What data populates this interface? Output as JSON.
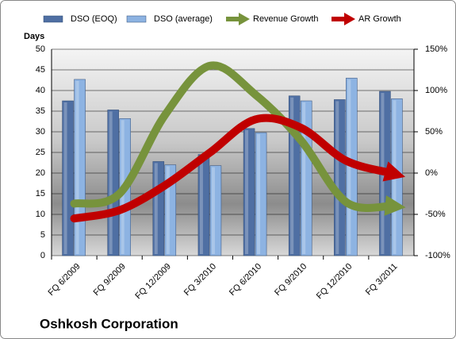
{
  "chart_data": {
    "type": "bar-line",
    "title": "Oshkosh Corporation",
    "y_label": "Days",
    "categories": [
      "FQ 6/2009",
      "FQ 9/2009",
      "FQ 12/2009",
      "FQ 3/2010",
      "FQ 6/2010",
      "FQ 9/2010",
      "FQ 12/2010",
      "FQ 3/2011"
    ],
    "series": [
      {
        "name": "DSO (EOQ)",
        "color": "#4f6fa3",
        "kind": "bar",
        "values": [
          37.5,
          35.3,
          22.8,
          24.5,
          30.8,
          38.7,
          37.8,
          39.8
        ]
      },
      {
        "name": "DSO (average)",
        "color": "#8db3e2",
        "kind": "bar",
        "values": [
          42.7,
          33.2,
          22.0,
          21.8,
          29.8,
          37.5,
          43.0,
          38.0
        ]
      },
      {
        "name": "Revenue Growth",
        "color": "#77933c",
        "kind": "line",
        "axis": "y2",
        "values": [
          -37,
          -25,
          70,
          130,
          95,
          40,
          -35,
          -40
        ]
      },
      {
        "name": "AR Growth",
        "color": "#c00000",
        "kind": "line",
        "axis": "y2",
        "values": [
          -55,
          -45,
          -15,
          25,
          65,
          55,
          15,
          0
        ]
      }
    ],
    "ylim": [
      0,
      50
    ],
    "yticks": [
      0,
      5,
      10,
      15,
      20,
      25,
      30,
      35,
      40,
      45,
      50
    ],
    "y2lim": [
      -100,
      150
    ],
    "y2ticks": [
      {
        "value": -100,
        "label": "-100%"
      },
      {
        "value": -50,
        "label": "-50%"
      },
      {
        "value": 0,
        "label": "0%"
      },
      {
        "value": 50,
        "label": "50%"
      },
      {
        "value": 100,
        "label": "100%"
      },
      {
        "value": 150,
        "label": "150%"
      }
    ],
    "grid": true
  }
}
